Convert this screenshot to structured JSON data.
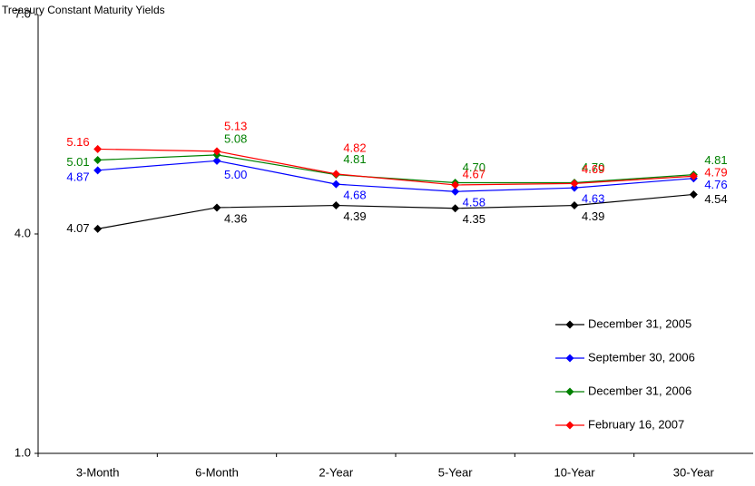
{
  "chart_data": {
    "type": "line",
    "title": "Treasury Constant Maturity Yields",
    "categories": [
      "3-Month",
      "6-Month",
      "2-Year",
      "5-Year",
      "10-Year",
      "30-Year"
    ],
    "ylim": [
      1,
      7
    ],
    "yticks": [
      {
        "value": 1,
        "label": "1.0"
      },
      {
        "value": 4,
        "label": "4.0"
      },
      {
        "value": 7,
        "label": "7.0"
      }
    ],
    "grid": false,
    "legend": "lower right",
    "series": [
      {
        "name": "December 31, 2005",
        "color": "#000000",
        "values": [
          4.07,
          4.36,
          4.39,
          4.35,
          4.39,
          4.54
        ],
        "value_labels": [
          "4.07",
          "4.36",
          "4.39",
          "4.35",
          "4.39",
          "4.54"
        ]
      },
      {
        "name": "September 30, 2006",
        "color": "#0000ff",
        "values": [
          4.87,
          5.0,
          4.68,
          4.58,
          4.63,
          4.76
        ],
        "value_labels": [
          "4.87",
          "5.00",
          "4.68",
          "4.58",
          "4.63",
          "4.76"
        ]
      },
      {
        "name": "December 31, 2006",
        "color": "#008000",
        "values": [
          5.01,
          5.08,
          4.81,
          4.7,
          4.7,
          4.81
        ],
        "value_labels": [
          "5.01",
          "5.08",
          "4.81",
          "4.70",
          "4.70",
          "4.81"
        ]
      },
      {
        "name": "February 16, 2007",
        "color": "#ff0000",
        "values": [
          5.16,
          5.13,
          4.82,
          4.67,
          4.69,
          4.79
        ],
        "value_labels": [
          "5.16",
          "5.13",
          "4.82",
          "4.67",
          "4.69",
          "4.79"
        ]
      }
    ]
  }
}
